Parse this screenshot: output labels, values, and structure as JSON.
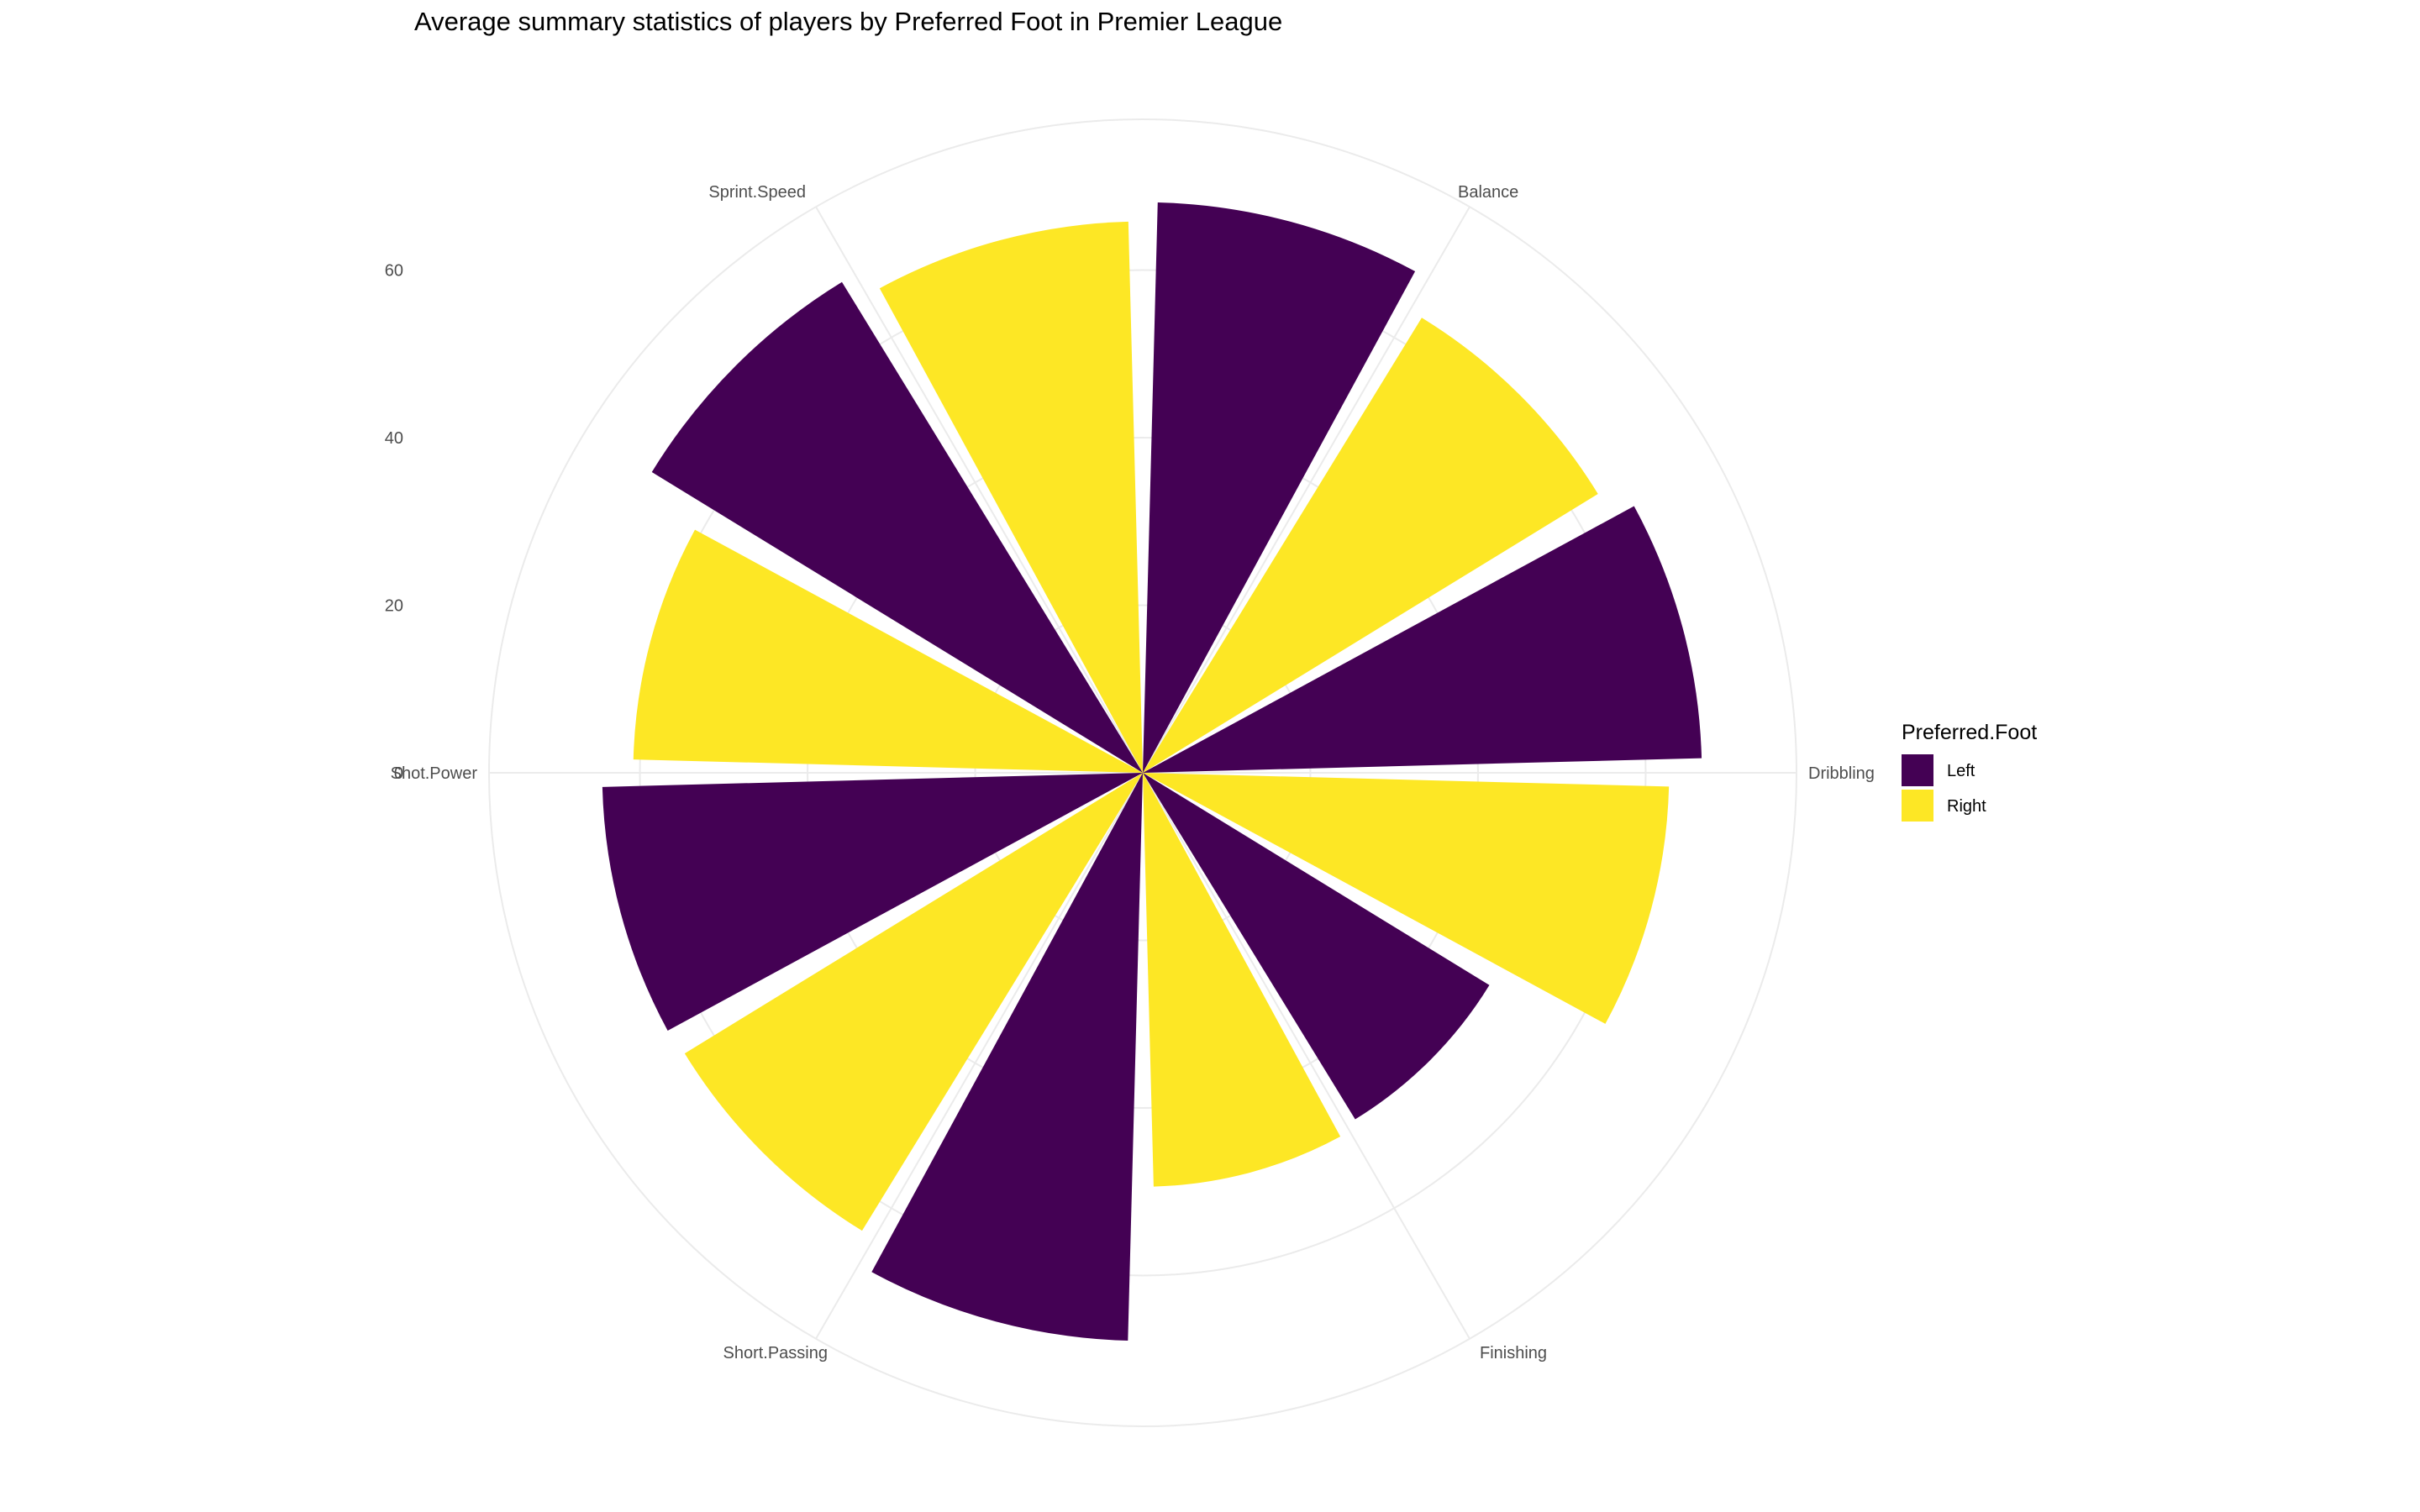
{
  "chart_data": {
    "type": "bar",
    "coord": "polar",
    "title": "Average summary statistics of players by Preferred Foot in Premier League",
    "categories": [
      "Dribbling",
      "Finishing",
      "Short.Passing",
      "Shot.Power",
      "Sprint.Speed",
      "Balance"
    ],
    "series": [
      {
        "name": "Left",
        "color": "#440154",
        "values": [
          66.7,
          48.5,
          67.8,
          64.5,
          68.7,
          68.1
        ]
      },
      {
        "name": "Right",
        "color": "#fde725",
        "values": [
          62.8,
          49.4,
          64.1,
          60.8,
          65.8,
          63.7
        ]
      }
    ],
    "r_ticks": [
      0,
      20,
      40,
      60
    ],
    "rlim": [
      0,
      78
    ],
    "grid": true,
    "legend": {
      "title": "Preferred.Foot",
      "position": "right",
      "entries": [
        "Left",
        "Right"
      ]
    }
  }
}
